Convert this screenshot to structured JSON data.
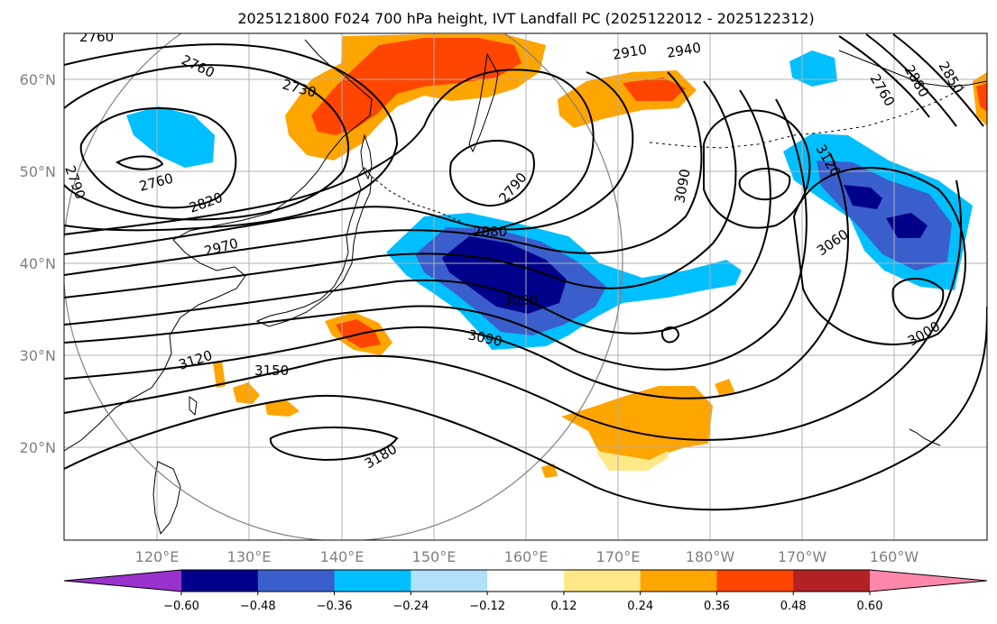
{
  "title": "2025121800 F024 700 hPa height, IVT Landfall PC (2025122012 - 2025122312)",
  "map": {
    "lat_labels": [
      "60°N",
      "50°N",
      "40°N",
      "30°N",
      "20°N"
    ],
    "lon_labels": [
      "120°E",
      "130°E",
      "140°E",
      "150°E",
      "160°E",
      "170°E",
      "180°W",
      "170°W",
      "160°W"
    ],
    "contour_labels": [
      "2760",
      "2760",
      "2730",
      "2760",
      "2820",
      "2970",
      "3120",
      "3150",
      "3180",
      "2790",
      "2880",
      "3030",
      "3090",
      "2910",
      "2940",
      "3090",
      "3120",
      "3060",
      "3000",
      "2790",
      "2760",
      "2880",
      "2850"
    ]
  },
  "colorbar": {
    "tick_labels": [
      "−0.60",
      "−0.48",
      "−0.36",
      "−0.24",
      "−0.12",
      "0.12",
      "0.24",
      "0.36",
      "0.48",
      "0.60"
    ],
    "colors": [
      "#9932cc",
      "#00008b",
      "#3a5fcd",
      "#00bfff",
      "#b0e0fa",
      "#ffffff",
      "#ffe88a",
      "#ffa500",
      "#ff4500",
      "#b22222",
      "#ff88aa"
    ]
  },
  "colors": {
    "land_outline": "#000000",
    "grid": "#b0b0b0",
    "circle": "#808080"
  }
}
